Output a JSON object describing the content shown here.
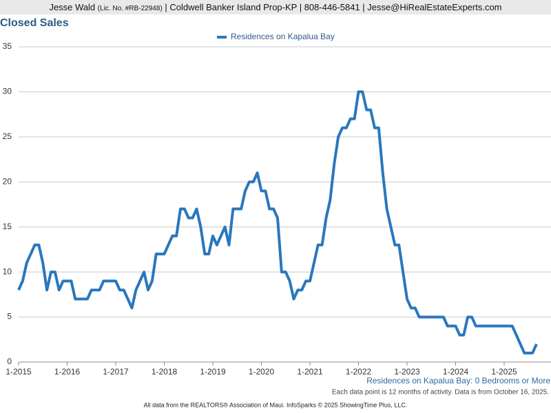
{
  "header": {
    "agent": "Jesse Wald",
    "license": "(Lic. No. #RB-22948)",
    "details": "| Coldwell Banker Island Prop-KP | 808-446-5841 | Jesse@HiRealEstateExperts.com"
  },
  "chart_data": {
    "type": "line",
    "title": "Closed Sales",
    "subtitle": "Residences on Kapalua Bay: 0 Bedrooms or More",
    "note": "Each data point is 12 months of activity. Data is from October 16, 2025.",
    "footer": "All data from the REALTORS® Association of Maui. InfoSparks © 2025 ShowingTime Plus, LLC.",
    "categories": [
      "1-2015",
      null,
      null,
      null,
      null,
      null,
      null,
      null,
      null,
      null,
      null,
      null,
      "1-2016",
      null,
      null,
      null,
      null,
      null,
      null,
      null,
      null,
      null,
      null,
      null,
      "1-2017",
      null,
      null,
      null,
      null,
      null,
      null,
      null,
      null,
      null,
      null,
      null,
      "1-2018",
      null,
      null,
      null,
      null,
      null,
      null,
      null,
      null,
      null,
      null,
      null,
      "1-2019",
      null,
      null,
      null,
      null,
      null,
      null,
      null,
      null,
      null,
      null,
      null,
      "1-2020",
      null,
      null,
      null,
      null,
      null,
      null,
      null,
      null,
      null,
      null,
      null,
      "1-2021",
      null,
      null,
      null,
      null,
      null,
      null,
      null,
      null,
      null,
      null,
      null,
      "1-2022",
      null,
      null,
      null,
      null,
      null,
      null,
      null,
      null,
      null,
      null,
      null,
      "1-2023",
      null,
      null,
      null,
      null,
      null,
      null,
      null,
      null,
      null,
      null,
      null,
      "1-2024",
      null,
      null,
      null,
      null,
      null,
      null,
      null,
      null,
      null,
      null,
      null,
      "1-2025",
      null,
      null,
      null,
      null,
      null,
      null,
      null,
      null
    ],
    "series": [
      {
        "name": "Residences on Kapalua Bay",
        "color": "#2a77bd",
        "values": [
          8,
          9,
          11,
          12,
          13,
          13,
          11,
          8,
          10,
          10,
          8,
          9,
          9,
          9,
          7,
          7,
          7,
          7,
          8,
          8,
          8,
          9,
          9,
          9,
          9,
          8,
          8,
          7,
          6,
          8,
          9,
          10,
          8,
          9,
          12,
          12,
          12,
          13,
          14,
          14,
          17,
          17,
          16,
          16,
          17,
          15,
          12,
          12,
          14,
          13,
          14,
          15,
          13,
          17,
          17,
          17,
          19,
          20,
          20,
          21,
          19,
          19,
          17,
          17,
          16,
          10,
          10,
          9,
          7,
          8,
          8,
          9,
          9,
          11,
          13,
          13,
          16,
          18,
          22,
          25,
          26,
          26,
          27,
          27,
          30,
          30,
          28,
          28,
          26,
          26,
          21,
          17,
          15,
          13,
          13,
          10,
          7,
          6,
          6,
          5,
          5,
          5,
          5,
          5,
          5,
          5,
          4,
          4,
          4,
          3,
          3,
          5,
          5,
          4,
          4,
          4,
          4,
          4,
          4,
          4,
          4,
          4,
          4,
          3,
          2,
          1,
          1,
          1,
          2
        ]
      }
    ],
    "ylim": [
      0,
      35
    ],
    "yticks": [
      0,
      5,
      10,
      15,
      20,
      25,
      30,
      35
    ],
    "grid": true,
    "legend": "top"
  }
}
